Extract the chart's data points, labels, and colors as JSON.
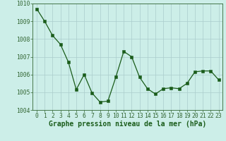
{
  "x": [
    0,
    1,
    2,
    3,
    4,
    5,
    6,
    7,
    8,
    9,
    10,
    11,
    12,
    13,
    14,
    15,
    16,
    17,
    18,
    19,
    20,
    21,
    22,
    23
  ],
  "y": [
    1009.7,
    1009.0,
    1008.2,
    1007.7,
    1006.7,
    1005.15,
    1006.0,
    1004.95,
    1004.45,
    1004.5,
    1005.85,
    1007.3,
    1007.0,
    1005.85,
    1005.2,
    1004.9,
    1005.2,
    1005.25,
    1005.2,
    1005.5,
    1006.15,
    1006.2,
    1006.2,
    1005.7
  ],
  "line_color": "#1a5c1a",
  "marker_color": "#1a5c1a",
  "bg_color": "#cceee8",
  "grid_color": "#aacccc",
  "xlabel": "Graphe pression niveau de la mer (hPa)",
  "xlabel_color": "#1a5c1a",
  "tick_color": "#336633",
  "ylim": [
    1004.0,
    1010.0
  ],
  "yticks": [
    1004,
    1005,
    1006,
    1007,
    1008,
    1009,
    1010
  ],
  "xticks": [
    0,
    1,
    2,
    3,
    4,
    5,
    6,
    7,
    8,
    9,
    10,
    11,
    12,
    13,
    14,
    15,
    16,
    17,
    18,
    19,
    20,
    21,
    22,
    23
  ],
  "font_size_xlabel": 7.0,
  "font_size_ticks": 5.8
}
